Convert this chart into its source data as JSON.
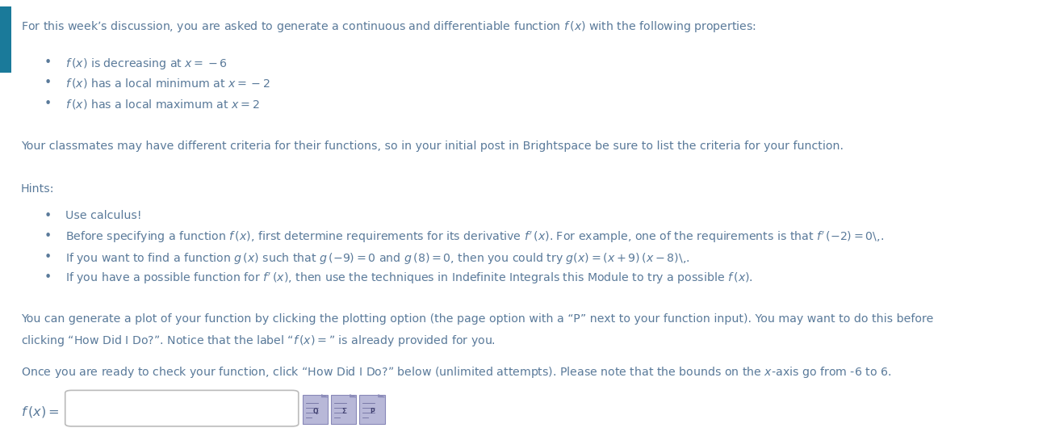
{
  "background_color": "#ffffff",
  "left_bar_color": "#1a7a9a",
  "text_color": "#5a7a9a",
  "title_text": "For this week’s discussion, you are asked to generate a continuous and differentiable function $f\\,(x)$ with the following properties:",
  "bullet1": "$f\\,(x)$ is decreasing at $x = -6$",
  "bullet2": "$f\\,(x)$ has a local minimum at $x = -2$",
  "bullet3": "$f\\,(x)$ has a local maximum at $x = 2$",
  "para1": "Your classmates may have different criteria for their functions, so in your initial post in Brightspace be sure to list the criteria for your function.",
  "hints_label": "Hints:",
  "hint1": "Use calculus!",
  "hint2": "Before specifying a function $f\\,(x)$, first determine requirements for its derivative $f^{\\prime}\\,(x)$. For example, one of the requirements is that $f^{\\prime}\\,(-2) = 0$\\,.",
  "hint3": "If you want to find a function $g\\,(x)$ such that $g\\,(-9) = 0$ and $g\\,(8) = 0$, then you could try $g(x) = (x+9)\\,(x-8)$\\,.",
  "hint4": "If you have a possible function for $f^{\\prime}\\,(x)$, then use the techniques in Indefinite Integrals this Module to try a possible $f\\,(x)$.",
  "para2a": "You can generate a plot of your function by clicking the plotting option (the page option with a “P” next to your function input). You may want to do this before",
  "para2b": "clicking “How Did I Do?”. Notice that the label “$f\\,(x) =$” is already provided for you.",
  "para3": "Once you are ready to check your function, click “How Did I Do?” below (unlimited attempts). Please note that the bounds on the $x$-axis go from -6 to 6.",
  "fx_label": "$f\\,(x) =$",
  "input_box_color": "#ffffff",
  "input_box_border": "#bbbbbb",
  "icon_face": "#b8b8d8",
  "icon_edge": "#8888b8"
}
